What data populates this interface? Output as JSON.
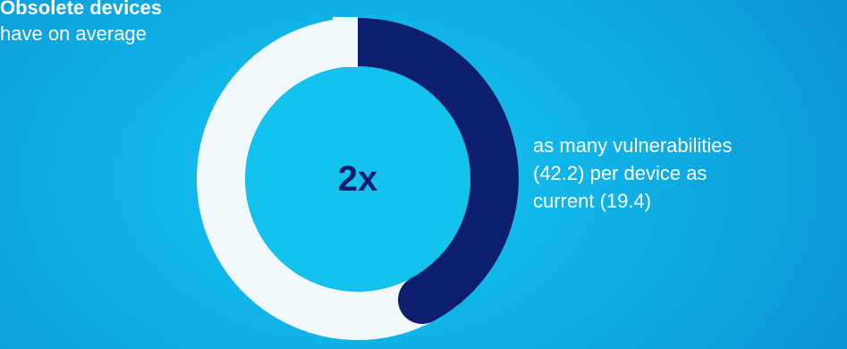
{
  "heading": {
    "strong": "Obsolete devices",
    "sub": "have on average"
  },
  "description": {
    "lines": [
      "as many vulnerabilities",
      "(42.2) per device as",
      "current (19.4)"
    ]
  },
  "chart_data": {
    "type": "pie",
    "style": "donut",
    "center_label": "2x",
    "segments": [
      {
        "value": 42.2,
        "color": "#0b1f6e"
      },
      {
        "value": 100,
        "color": "#f2f9fd"
      }
    ],
    "title": "",
    "note": ""
  },
  "colors": {
    "background": "#0fb2e6",
    "ring_track": "#f2f9fd",
    "ring_highlight": "#0b1f6e",
    "center_fill": "#13c3ee",
    "center_text": "#0b1f6e"
  }
}
